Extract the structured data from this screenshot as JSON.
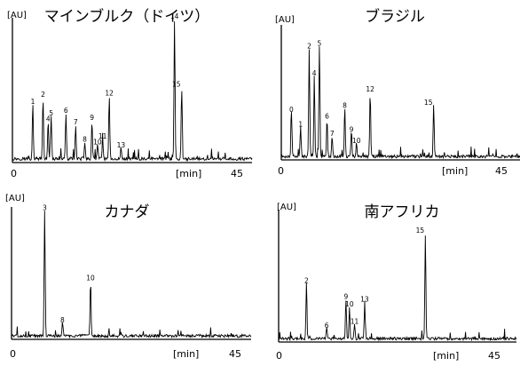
{
  "chart_data": [
    {
      "type": "line",
      "title": "マインブルク（ドイツ）",
      "ylabel": "[AU]",
      "xlabel": "[min]",
      "xticks": [
        "0",
        "45"
      ],
      "xlim": [
        0,
        47
      ],
      "ylim": [
        0,
        100
      ],
      "peaks": [
        {
          "label": "1",
          "x": 4.0,
          "y": 38
        },
        {
          "label": "2",
          "x": 6.0,
          "y": 43
        },
        {
          "label": "4",
          "x": 7.0,
          "y": 26
        },
        {
          "label": "5",
          "x": 7.6,
          "y": 30
        },
        {
          "label": "6",
          "x": 10.5,
          "y": 32
        },
        {
          "label": "7",
          "x": 12.4,
          "y": 24
        },
        {
          "label": "8",
          "x": 14.2,
          "y": 12
        },
        {
          "label": "9",
          "x": 15.6,
          "y": 27
        },
        {
          "label": "10",
          "x": 16.7,
          "y": 10
        },
        {
          "label": "11",
          "x": 17.7,
          "y": 14
        },
        {
          "label": "12",
          "x": 19.0,
          "y": 44
        },
        {
          "label": "13",
          "x": 21.3,
          "y": 8
        },
        {
          "label": "14",
          "x": 31.8,
          "y": 97
        },
        {
          "label": "15",
          "x": 33.2,
          "y": 50
        }
      ]
    },
    {
      "type": "line",
      "title": "ブラジル",
      "ylabel": "[AU]",
      "xlabel": "[min]",
      "xticks": [
        "0",
        "45"
      ],
      "xlim": [
        0,
        47
      ],
      "ylim": [
        0,
        100
      ],
      "peaks": [
        {
          "label": "0",
          "x": 2.0,
          "y": 33
        },
        {
          "label": "1",
          "x": 3.8,
          "y": 22
        },
        {
          "label": "2",
          "x": 5.5,
          "y": 80
        },
        {
          "label": "5",
          "x": 7.5,
          "y": 82
        },
        {
          "label": "4",
          "x": 6.5,
          "y": 60
        },
        {
          "label": "6",
          "x": 9.0,
          "y": 28
        },
        {
          "label": "7",
          "x": 10.0,
          "y": 15
        },
        {
          "label": "8",
          "x": 12.5,
          "y": 36
        },
        {
          "label": "9",
          "x": 13.8,
          "y": 18
        },
        {
          "label": "10",
          "x": 14.8,
          "y": 10
        },
        {
          "label": "12",
          "x": 17.5,
          "y": 48
        },
        {
          "label": "15",
          "x": 30.0,
          "y": 38
        }
      ]
    },
    {
      "type": "line",
      "title": "カナダ",
      "ylabel": "[AU]",
      "xlabel": "[min]",
      "xticks": [
        "0",
        "45"
      ],
      "xlim": [
        0,
        47
      ],
      "ylim": [
        0,
        100
      ],
      "peaks": [
        {
          "label": "3",
          "x": 6.5,
          "y": 95
        },
        {
          "label": "8",
          "x": 10.0,
          "y": 10
        },
        {
          "label": "10",
          "x": 15.5,
          "y": 42
        }
      ]
    },
    {
      "type": "line",
      "title": "南アフリカ",
      "ylabel": "[AU]",
      "xlabel": "[min]",
      "xticks": [
        "0",
        "45"
      ],
      "xlim": [
        0,
        47
      ],
      "ylim": [
        0,
        100
      ],
      "peaks": [
        {
          "label": "2",
          "x": 5.5,
          "y": 42
        },
        {
          "label": "6",
          "x": 9.5,
          "y": 8
        },
        {
          "label": "9",
          "x": 13.3,
          "y": 30
        },
        {
          "label": "10",
          "x": 14.0,
          "y": 24
        },
        {
          "label": "11",
          "x": 15.0,
          "y": 11
        },
        {
          "label": "13",
          "x": 17.0,
          "y": 28
        },
        {
          "label": "15",
          "x": 29.0,
          "y": 80
        }
      ]
    }
  ]
}
